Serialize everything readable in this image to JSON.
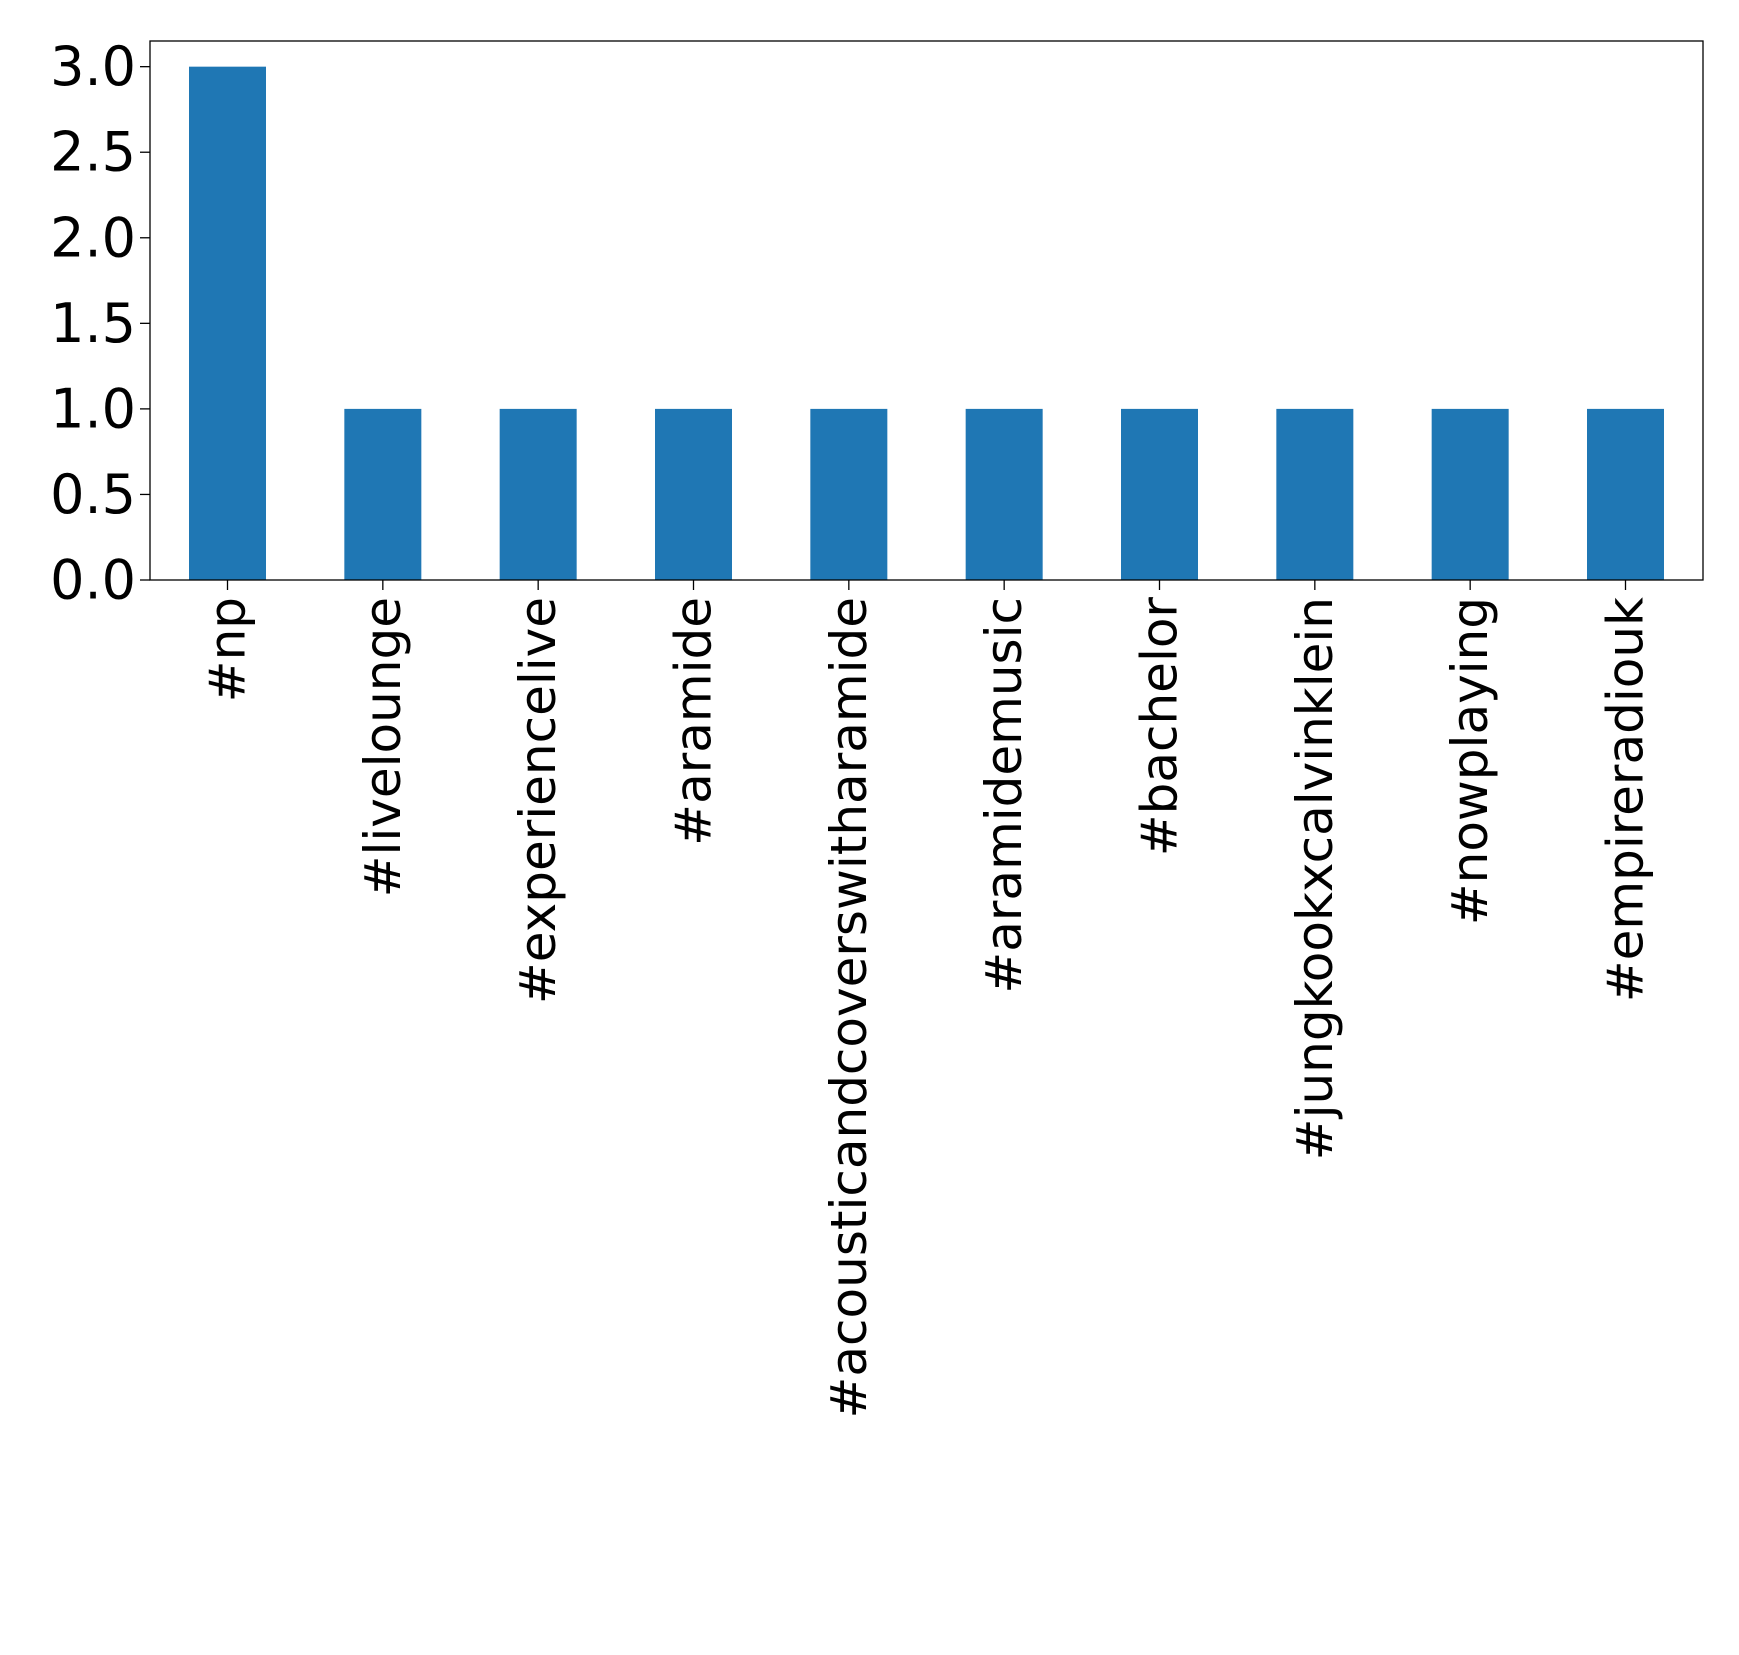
{
  "chart_data": {
    "type": "bar",
    "title": "",
    "xlabel": "",
    "ylabel": "",
    "categories": [
      "#np",
      "#livelounge",
      "#experiencelive",
      "#aramide",
      "#acousticandcoverswitharamide",
      "#aramidemusic",
      "#bachelor",
      "#jungkookxcalvinklein",
      "#nowplaying",
      "#empireradiouk"
    ],
    "values": [
      3,
      1,
      1,
      1,
      1,
      1,
      1,
      1,
      1,
      1
    ],
    "ylim": [
      0,
      3.15
    ],
    "yticks": [
      "0.0",
      "0.5",
      "1.0",
      "1.5",
      "2.0",
      "2.5",
      "3.0"
    ],
    "grid": false,
    "legend": "none",
    "bar_color": "#1f77b4"
  }
}
